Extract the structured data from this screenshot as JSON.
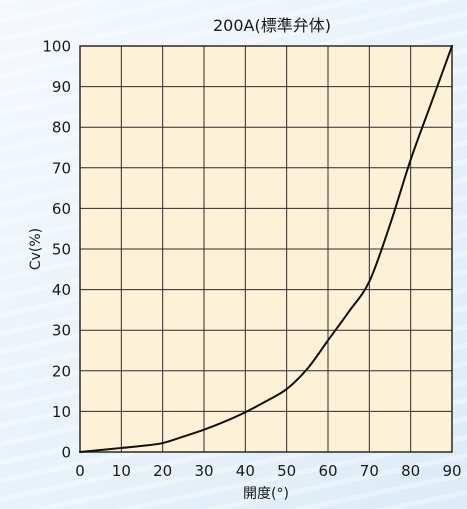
{
  "chart_data": {
    "type": "line",
    "title": "200A(標準弁体)",
    "xlabel": "開度(°)",
    "ylabel": "Cv(%)",
    "xlim": [
      0,
      90
    ],
    "ylim": [
      0,
      100
    ],
    "x_ticks": [
      "0",
      "10",
      "20",
      "30",
      "40",
      "50",
      "60",
      "70",
      "80",
      "90"
    ],
    "y_ticks": [
      "0",
      "10",
      "20",
      "30",
      "40",
      "50",
      "60",
      "70",
      "80",
      "90",
      "100"
    ],
    "grid": true,
    "legend": "none",
    "series": [
      {
        "x": [
          0,
          5,
          10,
          15,
          20,
          25,
          30,
          35,
          40,
          45,
          50,
          55,
          60,
          65,
          70,
          75,
          80,
          85,
          90
        ],
        "values": [
          0,
          0.5,
          1.0,
          1.5,
          2.2,
          3.8,
          5.5,
          7.5,
          9.8,
          12.5,
          15.5,
          20.5,
          27.5,
          34.5,
          42,
          56,
          72,
          86,
          100
        ]
      }
    ],
    "colors": {
      "plot_bg": "#fdf1d8",
      "grid": "#2a2a2a",
      "curve": "#111111",
      "page_bg_light": "#e8f2fa",
      "page_bg_stripe": "#cfe3f2"
    }
  }
}
